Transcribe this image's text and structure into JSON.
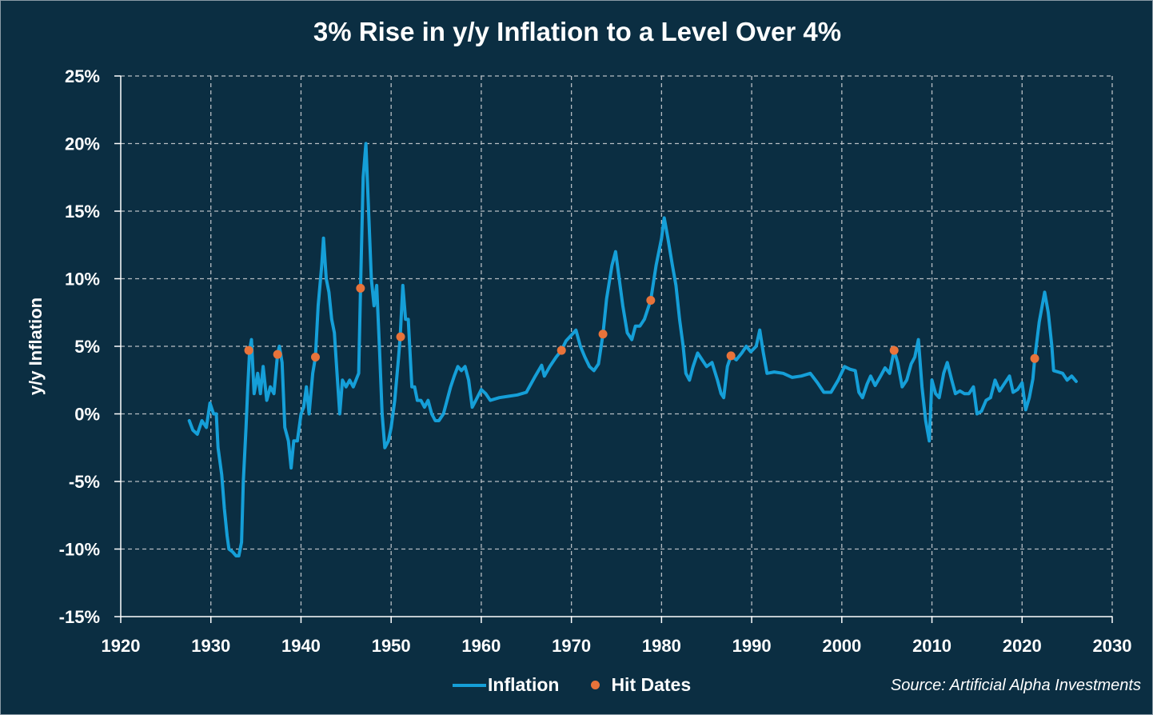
{
  "chart_data": {
    "type": "line",
    "title": "3% Rise in y/y Inflation to a Level Over 4%",
    "xlabel": "",
    "ylabel": "y/y Inflation",
    "xlim": [
      1920,
      2030
    ],
    "ylim": [
      -15,
      25
    ],
    "x_ticks": [
      "1920",
      "1930",
      "1940",
      "1950",
      "1960",
      "1970",
      "1980",
      "1990",
      "2000",
      "2010",
      "2020",
      "2030"
    ],
    "y_ticks": [
      "25%",
      "20%",
      "15%",
      "10%",
      "5%",
      "0%",
      "-5%",
      "-10%",
      "-15%"
    ],
    "grid": true,
    "legend_position": "bottom",
    "source": "Source: Artificial Alpha Investments",
    "colors": {
      "inflation": "#159fd8",
      "hits": "#e8733a",
      "background": "#0b2e42"
    },
    "series": [
      {
        "name": "Inflation",
        "type": "line",
        "points": [
          [
            1927.6,
            -0.5
          ],
          [
            1928,
            -1.2
          ],
          [
            1928.5,
            -1.5
          ],
          [
            1929,
            -0.5
          ],
          [
            1929.5,
            -1
          ],
          [
            1929.9,
            0.8
          ],
          [
            1930.3,
            0
          ],
          [
            1930.6,
            0
          ],
          [
            1930.8,
            -2.5
          ],
          [
            1931.2,
            -4.5
          ],
          [
            1931.5,
            -7
          ],
          [
            1931.8,
            -9
          ],
          [
            1932,
            -10
          ],
          [
            1932.4,
            -10.2
          ],
          [
            1932.8,
            -10.5
          ],
          [
            1933.1,
            -10.5
          ],
          [
            1933.4,
            -9.5
          ],
          [
            1933.6,
            -5
          ],
          [
            1933.9,
            -1
          ],
          [
            1934.1,
            2
          ],
          [
            1934.3,
            4.7
          ],
          [
            1934.5,
            5.5
          ],
          [
            1934.8,
            1.5
          ],
          [
            1935.2,
            3
          ],
          [
            1935.5,
            1.5
          ],
          [
            1935.8,
            3.5
          ],
          [
            1936.2,
            1
          ],
          [
            1936.6,
            2
          ],
          [
            1937,
            1.5
          ],
          [
            1937.4,
            4.4
          ],
          [
            1937.6,
            5
          ],
          [
            1937.9,
            3.8
          ],
          [
            1938.2,
            -1
          ],
          [
            1938.6,
            -2
          ],
          [
            1938.9,
            -4
          ],
          [
            1939.2,
            -2
          ],
          [
            1939.6,
            -2
          ],
          [
            1940,
            0
          ],
          [
            1940.3,
            0.5
          ],
          [
            1940.6,
            2
          ],
          [
            1940.9,
            0
          ],
          [
            1941.3,
            3
          ],
          [
            1941.6,
            4.2
          ],
          [
            1941.9,
            8
          ],
          [
            1942.3,
            11
          ],
          [
            1942.5,
            13
          ],
          [
            1942.8,
            10
          ],
          [
            1943.1,
            9
          ],
          [
            1943.4,
            7
          ],
          [
            1943.7,
            6
          ],
          [
            1944,
            3
          ],
          [
            1944.3,
            0
          ],
          [
            1944.6,
            2.5
          ],
          [
            1945,
            2
          ],
          [
            1945.4,
            2.5
          ],
          [
            1945.8,
            2
          ],
          [
            1946.1,
            2.5
          ],
          [
            1946.4,
            3
          ],
          [
            1946.6,
            9.3
          ],
          [
            1946.9,
            17.5
          ],
          [
            1947.2,
            20
          ],
          [
            1947.5,
            15
          ],
          [
            1947.8,
            10
          ],
          [
            1948.1,
            8
          ],
          [
            1948.4,
            9.5
          ],
          [
            1948.7,
            5
          ],
          [
            1949,
            0
          ],
          [
            1949.3,
            -2.5
          ],
          [
            1949.7,
            -2
          ],
          [
            1950,
            -1
          ],
          [
            1950.4,
            1
          ],
          [
            1950.8,
            4
          ],
          [
            1951,
            5.7
          ],
          [
            1951.3,
            9.5
          ],
          [
            1951.6,
            7
          ],
          [
            1951.9,
            7
          ],
          [
            1952.3,
            2
          ],
          [
            1952.6,
            2
          ],
          [
            1952.9,
            1
          ],
          [
            1953.3,
            1
          ],
          [
            1953.7,
            0.5
          ],
          [
            1954.1,
            1
          ],
          [
            1954.5,
            0
          ],
          [
            1954.9,
            -0.5
          ],
          [
            1955.3,
            -0.5
          ],
          [
            1955.8,
            0
          ],
          [
            1956.2,
            1
          ],
          [
            1956.6,
            2
          ],
          [
            1957,
            2.8
          ],
          [
            1957.4,
            3.5
          ],
          [
            1957.8,
            3.2
          ],
          [
            1958.2,
            3.5
          ],
          [
            1958.6,
            2.5
          ],
          [
            1959,
            0.5
          ],
          [
            1959.4,
            1
          ],
          [
            1960,
            1.8
          ],
          [
            1960.5,
            1.5
          ],
          [
            1961,
            1
          ],
          [
            1962,
            1.2
          ],
          [
            1963,
            1.3
          ],
          [
            1964,
            1.4
          ],
          [
            1965,
            1.6
          ],
          [
            1966,
            2.8
          ],
          [
            1966.7,
            3.6
          ],
          [
            1967,
            2.8
          ],
          [
            1967.6,
            3.5
          ],
          [
            1968.3,
            4.2
          ],
          [
            1968.9,
            4.7
          ],
          [
            1969.4,
            5.4
          ],
          [
            1970.1,
            5.9
          ],
          [
            1970.5,
            6.2
          ],
          [
            1971,
            5
          ],
          [
            1971.5,
            4.2
          ],
          [
            1972,
            3.5
          ],
          [
            1972.5,
            3.2
          ],
          [
            1973,
            3.7
          ],
          [
            1973.5,
            5.9
          ],
          [
            1973.9,
            8.5
          ],
          [
            1974.5,
            11
          ],
          [
            1974.9,
            12
          ],
          [
            1975.3,
            10
          ],
          [
            1975.7,
            8
          ],
          [
            1976.2,
            6
          ],
          [
            1976.7,
            5.5
          ],
          [
            1977.1,
            6.5
          ],
          [
            1977.6,
            6.5
          ],
          [
            1978.1,
            7
          ],
          [
            1978.8,
            8.4
          ],
          [
            1979.4,
            11
          ],
          [
            1980,
            13
          ],
          [
            1980.3,
            14.5
          ],
          [
            1980.7,
            13
          ],
          [
            1981.2,
            11
          ],
          [
            1981.6,
            9.5
          ],
          [
            1982,
            7
          ],
          [
            1982.4,
            5
          ],
          [
            1982.7,
            3
          ],
          [
            1983.1,
            2.5
          ],
          [
            1983.5,
            3.5
          ],
          [
            1984,
            4.5
          ],
          [
            1984.5,
            4
          ],
          [
            1985,
            3.5
          ],
          [
            1985.6,
            3.8
          ],
          [
            1986.2,
            2.5
          ],
          [
            1986.6,
            1.5
          ],
          [
            1986.9,
            1.2
          ],
          [
            1987.3,
            3.5
          ],
          [
            1987.7,
            4.3
          ],
          [
            1988.3,
            4
          ],
          [
            1988.9,
            4.5
          ],
          [
            1989.4,
            5
          ],
          [
            1989.9,
            4.6
          ],
          [
            1990.5,
            5
          ],
          [
            1990.9,
            6.2
          ],
          [
            1991.3,
            4.5
          ],
          [
            1991.7,
            3
          ],
          [
            1992.5,
            3.1
          ],
          [
            1993.5,
            3
          ],
          [
            1994.5,
            2.7
          ],
          [
            1995.5,
            2.8
          ],
          [
            1996.5,
            3
          ],
          [
            1997.3,
            2.3
          ],
          [
            1998,
            1.6
          ],
          [
            1998.8,
            1.6
          ],
          [
            1999.6,
            2.5
          ],
          [
            2000.3,
            3.5
          ],
          [
            2000.9,
            3.3
          ],
          [
            2001.5,
            3.2
          ],
          [
            2001.9,
            1.6
          ],
          [
            2002.3,
            1.2
          ],
          [
            2002.8,
            2.2
          ],
          [
            2003.2,
            2.8
          ],
          [
            2003.7,
            2.1
          ],
          [
            2004.3,
            2.8
          ],
          [
            2004.8,
            3.4
          ],
          [
            2005.3,
            3
          ],
          [
            2005.8,
            4.7
          ],
          [
            2006.2,
            3.8
          ],
          [
            2006.7,
            2
          ],
          [
            2007.2,
            2.5
          ],
          [
            2007.7,
            3.7
          ],
          [
            2008.1,
            4.2
          ],
          [
            2008.5,
            5.5
          ],
          [
            2008.9,
            2
          ],
          [
            2009.3,
            -0.5
          ],
          [
            2009.7,
            -2
          ],
          [
            2010,
            2.5
          ],
          [
            2010.4,
            1.5
          ],
          [
            2010.8,
            1.2
          ],
          [
            2011.3,
            3
          ],
          [
            2011.7,
            3.8
          ],
          [
            2012.2,
            2.5
          ],
          [
            2012.6,
            1.5
          ],
          [
            2013.1,
            1.7
          ],
          [
            2013.6,
            1.5
          ],
          [
            2014.1,
            1.5
          ],
          [
            2014.6,
            2
          ],
          [
            2015,
            0
          ],
          [
            2015.5,
            0.2
          ],
          [
            2016,
            1
          ],
          [
            2016.5,
            1.2
          ],
          [
            2017,
            2.5
          ],
          [
            2017.5,
            1.7
          ],
          [
            2018,
            2.2
          ],
          [
            2018.6,
            2.8
          ],
          [
            2019,
            1.6
          ],
          [
            2019.5,
            1.8
          ],
          [
            2020,
            2.3
          ],
          [
            2020.4,
            0.3
          ],
          [
            2020.8,
            1.2
          ],
          [
            2021.2,
            2.6
          ],
          [
            2021.4,
            4.1
          ],
          [
            2021.9,
            6.8
          ],
          [
            2022.5,
            9
          ],
          [
            2022.9,
            7.5
          ],
          [
            2023.3,
            5
          ],
          [
            2023.5,
            3.2
          ],
          [
            2024,
            3.1
          ],
          [
            2024.5,
            3
          ],
          [
            2025,
            2.5
          ],
          [
            2025.5,
            2.8
          ],
          [
            2026,
            2.4
          ]
        ]
      },
      {
        "name": "Hit Dates",
        "type": "scatter",
        "points": [
          [
            1934.2,
            4.7
          ],
          [
            1937.4,
            4.4
          ],
          [
            1941.6,
            4.2
          ],
          [
            1946.6,
            9.3
          ],
          [
            1951.05,
            5.7
          ],
          [
            1968.9,
            4.7
          ],
          [
            1973.5,
            5.9
          ],
          [
            1978.8,
            8.4
          ],
          [
            1987.7,
            4.3
          ],
          [
            2005.8,
            4.7
          ],
          [
            2021.4,
            4.1
          ]
        ]
      }
    ]
  }
}
